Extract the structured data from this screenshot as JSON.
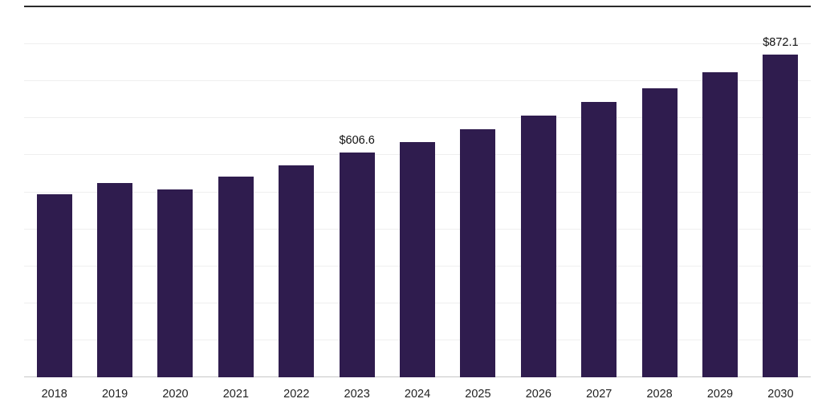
{
  "chart_data": {
    "type": "bar",
    "title": "",
    "xlabel": "",
    "ylabel": "",
    "categories": [
      "2018",
      "2019",
      "2020",
      "2021",
      "2022",
      "2023",
      "2024",
      "2025",
      "2026",
      "2027",
      "2028",
      "2029",
      "2030"
    ],
    "values": [
      495,
      525,
      508,
      542,
      572,
      606.6,
      636,
      671,
      708,
      743,
      782,
      824,
      872.1
    ],
    "labeled_points": [
      {
        "category": "2023",
        "label": "$606.6"
      },
      {
        "category": "2030",
        "label": "$872.1"
      }
    ],
    "ylim": [
      0,
      1000
    ],
    "gridline_step": 100,
    "grid": "horizontal",
    "legend": "none",
    "bar_color": "#2f1c4e",
    "axis_color": "#c6c6c6",
    "gridline_color": "#efefef",
    "top_border_color": "#2b2b2b",
    "label_color": "#111111",
    "tick_color": "#222222"
  }
}
